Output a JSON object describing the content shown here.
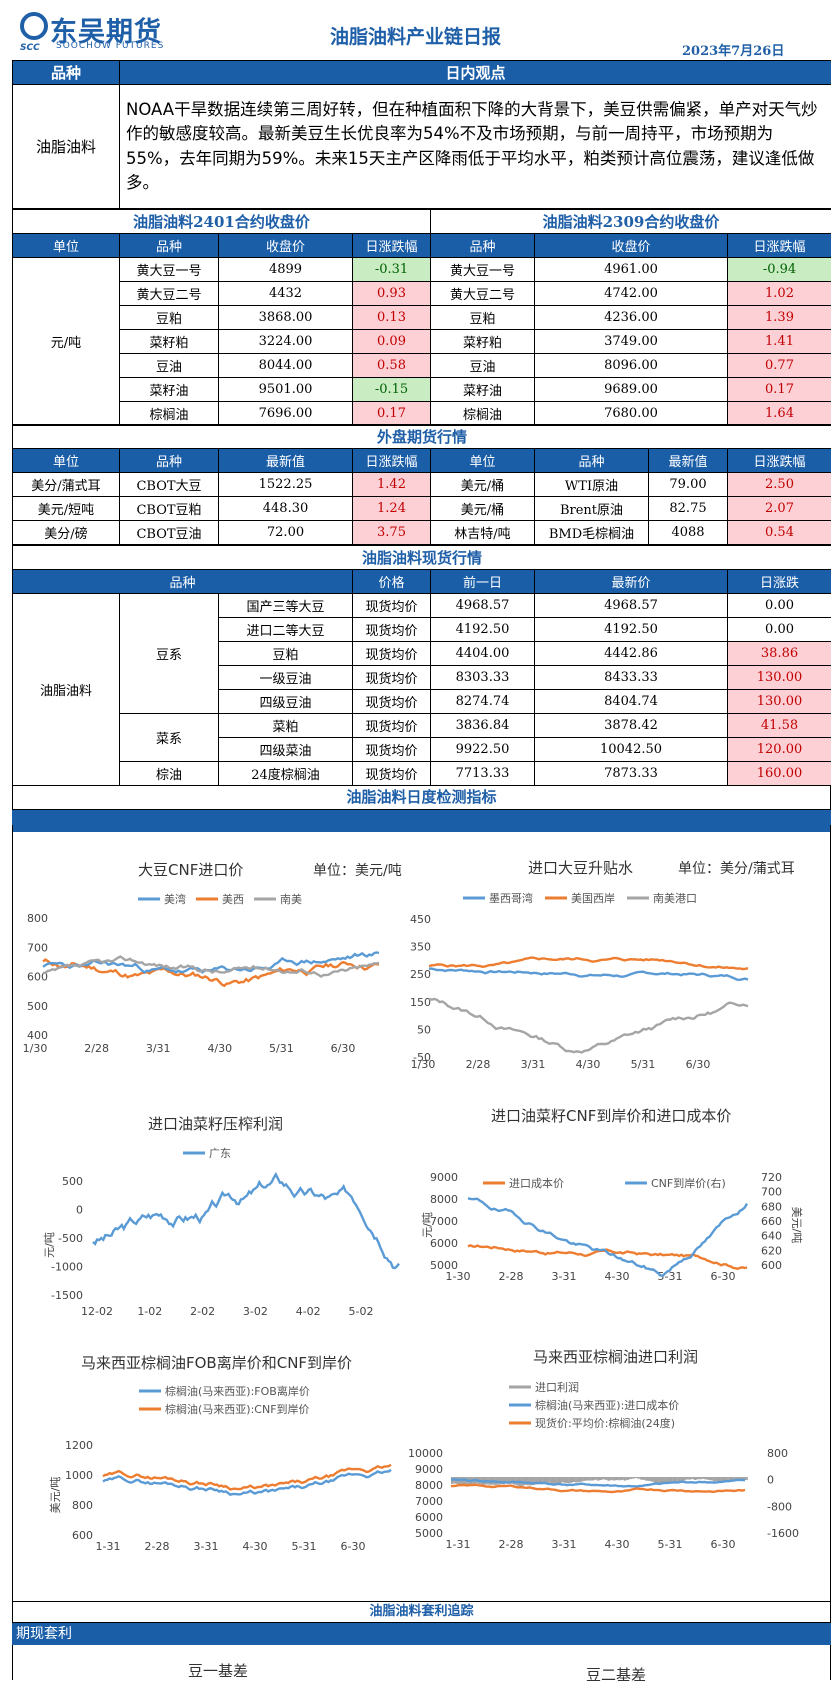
{
  "header": {
    "logo_cn": "东吴期货",
    "logo_en": "SOOCHOW  FUTURES",
    "logo_mark": "SCC",
    "title": "油脂油料产业链日报",
    "date": "2023年7月26日"
  },
  "view": {
    "col1": "品种",
    "col2": "日内观点",
    "variety": "油脂油料",
    "text": "NOAA干旱数据连续第三周好转，但在种植面积下降的大背景下，美豆供需偏紧，单产对天气炒作的敏感度较高。最新美豆生长优良率为54%不及市场预期，与前一周持平，市场预期为55%，去年同期为59%。未来15天主产区降雨低于平均水平，粕类预计高位震荡，建议逢低做多。"
  },
  "futures": {
    "title_left": "油脂油料2401合约收盘价",
    "title_right": "油脂油料2309合约收盘价",
    "headers": [
      "单位",
      "品种",
      "收盘价",
      "日涨跌幅",
      "品种",
      "收盘价",
      "日涨跌幅"
    ],
    "unit": "元/吨",
    "rows": [
      {
        "n1": "黄大豆一号",
        "p1": "4899",
        "c1": "-0.31",
        "s1": "neg",
        "n2": "黄大豆一号",
        "p2": "4961.00",
        "c2": "-0.94",
        "s2": "neg"
      },
      {
        "n1": "黄大豆二号",
        "p1": "4432",
        "c1": "0.93",
        "s1": "pos",
        "n2": "黄大豆二号",
        "p2": "4742.00",
        "c2": "1.02",
        "s2": "pos"
      },
      {
        "n1": "豆粕",
        "p1": "3868.00",
        "c1": "0.13",
        "s1": "pos",
        "n2": "豆粕",
        "p2": "4236.00",
        "c2": "1.39",
        "s2": "pos"
      },
      {
        "n1": "菜籽粕",
        "p1": "3224.00",
        "c1": "0.09",
        "s1": "pos",
        "n2": "菜籽粕",
        "p2": "3749.00",
        "c2": "1.41",
        "s2": "pos"
      },
      {
        "n1": "豆油",
        "p1": "8044.00",
        "c1": "0.58",
        "s1": "pos",
        "n2": "豆油",
        "p2": "8096.00",
        "c2": "0.77",
        "s2": "pos"
      },
      {
        "n1": "菜籽油",
        "p1": "9501.00",
        "c1": "-0.15",
        "s1": "neg",
        "n2": "菜籽油",
        "p2": "9689.00",
        "c2": "0.17",
        "s2": "pos"
      },
      {
        "n1": "棕榈油",
        "p1": "7696.00",
        "c1": "0.17",
        "s1": "pos",
        "n2": "棕榈油",
        "p2": "7680.00",
        "c2": "1.64",
        "s2": "pos"
      }
    ]
  },
  "overseas": {
    "title": "外盘期货行情",
    "headers": [
      "单位",
      "品种",
      "最新值",
      "日涨跌幅",
      "单位",
      "品种",
      "最新值",
      "日涨跌幅"
    ],
    "rows": [
      {
        "u1": "美分/蒲式耳",
        "n1": "CBOT大豆",
        "v1": "1522.25",
        "c1": "1.42",
        "u2": "美元/桶",
        "n2": "WTI原油",
        "v2": "79.00",
        "c2": "2.50"
      },
      {
        "u1": "美元/短吨",
        "n1": "CBOT豆粕",
        "v1": "448.30",
        "c1": "1.24",
        "u2": "美元/桶",
        "n2": "Brent原油",
        "v2": "82.75",
        "c2": "2.07"
      },
      {
        "u1": "美分/磅",
        "n1": "CBOT豆油",
        "v1": "72.00",
        "c1": "3.75",
        "u2": "林吉特/吨",
        "n2": "BMD毛棕榈油",
        "v2": "4088",
        "c2": "0.54"
      }
    ]
  },
  "spot": {
    "title": "油脂油料现货行情",
    "headers": [
      "品种",
      "价格",
      "前一日",
      "最新价",
      "日涨跌"
    ],
    "group": "油脂油料",
    "cats": [
      "豆系",
      "菜系",
      "棕油"
    ],
    "rows": [
      {
        "n": "国产三等大豆",
        "t": "现货均价",
        "prev": "4968.57",
        "last": "4968.57",
        "chg": "0.00",
        "s": "zero"
      },
      {
        "n": "进口二等大豆",
        "t": "现货均价",
        "prev": "4192.50",
        "last": "4192.50",
        "chg": "0.00",
        "s": "zero"
      },
      {
        "n": "豆粕",
        "t": "现货均价",
        "prev": "4404.00",
        "last": "4442.86",
        "chg": "38.86",
        "s": "pos"
      },
      {
        "n": "一级豆油",
        "t": "现货均价",
        "prev": "8303.33",
        "last": "8433.33",
        "chg": "130.00",
        "s": "pos"
      },
      {
        "n": "四级豆油",
        "t": "现货均价",
        "prev": "8274.74",
        "last": "8404.74",
        "chg": "130.00",
        "s": "pos"
      },
      {
        "n": "菜粕",
        "t": "现货均价",
        "prev": "3836.84",
        "last": "3878.42",
        "chg": "41.58",
        "s": "pos"
      },
      {
        "n": "四级菜油",
        "t": "现货均价",
        "prev": "9922.50",
        "last": "10042.50",
        "chg": "120.00",
        "s": "pos"
      },
      {
        "n": "24度棕榈油",
        "t": "现货均价",
        "prev": "7713.33",
        "last": "7873.33",
        "chg": "160.00",
        "s": "pos"
      }
    ]
  },
  "monitor": {
    "title": "油脂油料日度检测指标"
  },
  "charts": {
    "c1": {
      "title": "大豆CNF进口价",
      "unit": "单位：美元/吨",
      "legend": [
        "美湾",
        "美西",
        "南美"
      ],
      "yticks": [
        "800",
        "700",
        "600",
        "500",
        "400"
      ],
      "xticks": [
        "1/30",
        "2/28",
        "3/31",
        "4/30",
        "5/31",
        "6/30"
      ]
    },
    "c2": {
      "title": "进口大豆升贴水",
      "unit": "单位：美分/蒲式耳",
      "legend": [
        "墨西哥湾",
        "美国西岸",
        "南美港口"
      ],
      "yticks": [
        "450",
        "350",
        "250",
        "150",
        "50",
        "-50"
      ],
      "xticks": [
        "1/30",
        "2/28",
        "3/31",
        "4/30",
        "5/31",
        "6/30"
      ]
    },
    "c3": {
      "title": "进口油菜籽压榨利润",
      "legend": [
        "广东"
      ],
      "ylabel": "元/吨",
      "yticks": [
        "500",
        "0",
        "-500",
        "-1000",
        "-1500"
      ],
      "xticks": [
        "12-02",
        "1-02",
        "2-02",
        "3-02",
        "4-02",
        "5-02"
      ]
    },
    "c4": {
      "title": "进口油菜籽CNF到岸价和进口成本价",
      "legend": [
        "进口成本价",
        "CNF到岸价(右)"
      ],
      "ylabel": "元/吨",
      "ylabel_r": "美元/吨",
      "yticks": [
        "9000",
        "8000",
        "7000",
        "6000",
        "5000"
      ],
      "yticks_r": [
        "720",
        "700",
        "680",
        "660",
        "640",
        "620",
        "600"
      ],
      "xticks": [
        "1-30",
        "2-28",
        "3-31",
        "4-30",
        "5-31",
        "6-30"
      ]
    },
    "c5": {
      "title": "马来西亚棕榈油FOB离岸价和CNF到岸价",
      "legend": [
        "棕榈油(马来西亚):FOB离岸价",
        "棕榈油(马来西亚):CNF到岸价"
      ],
      "ylabel": "美元/吨",
      "yticks": [
        "1200",
        "1000",
        "800",
        "600"
      ],
      "xticks": [
        "1-31",
        "2-28",
        "3-31",
        "4-30",
        "5-31",
        "6-30"
      ]
    },
    "c6": {
      "title": "马来西亚棕榈油进口利润",
      "legend": [
        "进口利润",
        "棕榈油(马来西亚):进口成本价",
        "现货价:平均价:棕榈油(24度)"
      ],
      "yticks": [
        "10000",
        "9000",
        "8000",
        "7000",
        "6000",
        "5000"
      ],
      "yticks_r": [
        "800",
        "0",
        "-800",
        "-1600"
      ],
      "xticks": [
        "1-31",
        "2-28",
        "3-31",
        "4-30",
        "5-31",
        "6-30"
      ]
    }
  },
  "arb": {
    "title": "油脂油料套利追踪",
    "subtitle": "期现套利",
    "chart1": "豆一基差",
    "chart2": "豆二基差"
  },
  "colors": {
    "blue": "#1b5ea8",
    "orange": "#ed7d31",
    "gray": "#a5a5a5",
    "line_blue": "#5b9bd5"
  }
}
